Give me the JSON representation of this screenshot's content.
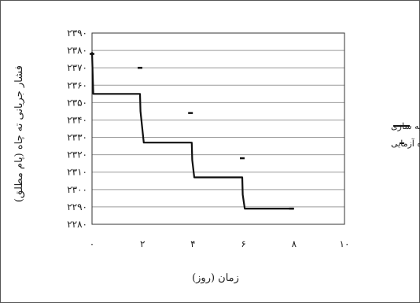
{
  "chart_data": {
    "type": "line",
    "ylabel": "فشار جریانی ته چاه (پام مطلق)",
    "xlabel": "زمان (روز)",
    "xlim": [
      0,
      10
    ],
    "ylim": [
      2280,
      2390
    ],
    "x_ticks": [
      0,
      2,
      4,
      6,
      8,
      10
    ],
    "x_tick_labels": [
      "۰",
      "۲",
      "۴",
      "۶",
      "۸",
      "۱۰"
    ],
    "y_ticks": [
      2280,
      2290,
      2300,
      2310,
      2320,
      2330,
      2340,
      2350,
      2360,
      2370,
      2380,
      2390
    ],
    "y_tick_labels": [
      "۲۲۸۰",
      "۲۲۹۰",
      "۲۳۰۰",
      "۲۳۱۰",
      "۲۳۲۰",
      "۲۳۳۰",
      "۲۳۴۰",
      "۲۳۵۰",
      "۲۳۶۰",
      "۲۳۷۰",
      "۲۳۸۰",
      "۲۳۹۰"
    ],
    "grid": "horizontal",
    "legend_position": "right",
    "series": [
      {
        "name": "شبیه سازی",
        "style": "line",
        "color": "#111111",
        "x": [
          0,
          0.05,
          1.9,
          1.92,
          2.05,
          3.95,
          3.97,
          4.05,
          5.95,
          5.97,
          6.05,
          8.0
        ],
        "y": [
          2379,
          2355,
          2355,
          2345,
          2327,
          2327,
          2317,
          2307,
          2307,
          2297,
          2289,
          2289
        ]
      },
      {
        "name": "چاه آزمایی",
        "style": "marker",
        "color": "#111111",
        "x": [
          0,
          1.9,
          3.9,
          5.95,
          7.9
        ],
        "y": [
          2378,
          2370,
          2344,
          2318,
          2289
        ]
      }
    ]
  }
}
